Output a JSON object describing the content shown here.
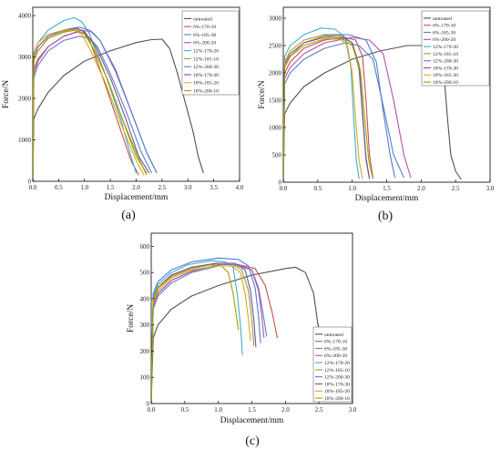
{
  "legend_entries": [
    "untreated",
    "6%-170-10",
    "6%-185-30",
    "6%-200-20",
    "12%-170-20",
    "12%-185-10",
    "12%-200-30",
    "18%-170-30",
    "18%-185-20",
    "18%-200-10"
  ],
  "series_colors": [
    "#505050",
    "#c0504d",
    "#5b7fc7",
    "#b54fb5",
    "#3bb0c9",
    "#8aa531",
    "#4f7fd0",
    "#7a4ea6",
    "#e0a41c",
    "#a0a000"
  ],
  "chart_data": [
    {
      "id": "a",
      "type": "line",
      "caption": "(a)",
      "xlabel": "Displacement/mm",
      "ylabel": "Force/N",
      "xlim": [
        0,
        4.0
      ],
      "ylim": [
        0,
        4200
      ],
      "xticks": [
        0.0,
        0.5,
        1.0,
        1.5,
        2.0,
        2.5,
        3.0,
        3.5,
        4.0
      ],
      "xtick_labels": [
        "0.0",
        "0.5",
        "1.0",
        "1.5",
        "2.0",
        "2.5",
        "3.0",
        "3.5",
        "4.0"
      ],
      "yticks": [
        0,
        1000,
        2000,
        3000,
        4000
      ],
      "ytick_labels": [
        "0",
        "1000",
        "2000",
        "3000",
        "4000"
      ],
      "legend_position": "top-right",
      "series": [
        {
          "name": "untreated",
          "x": [
            0,
            0.02,
            0.1,
            0.3,
            0.6,
            1.0,
            1.5,
            2.0,
            2.3,
            2.5,
            2.65,
            2.8,
            2.95,
            3.1,
            3.2,
            3.3
          ],
          "y": [
            0,
            1500,
            1750,
            2150,
            2550,
            2900,
            3150,
            3350,
            3420,
            3430,
            3200,
            2600,
            1900,
            1200,
            600,
            200
          ]
        },
        {
          "name": "6%-170-10",
          "x": [
            0,
            0.02,
            0.1,
            0.3,
            0.6,
            0.85,
            1.0,
            1.1,
            1.3,
            1.6,
            1.9,
            2.05
          ],
          "y": [
            0,
            2700,
            2950,
            3250,
            3500,
            3600,
            3580,
            3400,
            2700,
            1600,
            500,
            150
          ]
        },
        {
          "name": "6%-185-30",
          "x": [
            0,
            0.02,
            0.1,
            0.3,
            0.6,
            0.9,
            1.1,
            1.25,
            1.5,
            1.8,
            2.1,
            2.3
          ],
          "y": [
            0,
            2500,
            2800,
            3150,
            3400,
            3500,
            3450,
            3250,
            2600,
            1700,
            700,
            200
          ]
        },
        {
          "name": "6%-200-20",
          "x": [
            0,
            0.02,
            0.1,
            0.3,
            0.6,
            0.95,
            1.15,
            1.3,
            1.6,
            1.9,
            2.2,
            2.4
          ],
          "y": [
            0,
            2600,
            2900,
            3250,
            3500,
            3650,
            3600,
            3400,
            2700,
            1700,
            700,
            200
          ]
        },
        {
          "name": "12%-170-20",
          "x": [
            0,
            0.02,
            0.1,
            0.3,
            0.6,
            0.8,
            0.95,
            1.1,
            1.4,
            1.7,
            1.9,
            2.0
          ],
          "y": [
            0,
            3100,
            3350,
            3650,
            3880,
            3950,
            3850,
            3550,
            2600,
            1500,
            600,
            200
          ]
        },
        {
          "name": "12%-185-10",
          "x": [
            0,
            0.02,
            0.1,
            0.3,
            0.6,
            0.85,
            1.0,
            1.15,
            1.4,
            1.7,
            2.0,
            2.2
          ],
          "y": [
            0,
            2900,
            3150,
            3450,
            3620,
            3680,
            3620,
            3350,
            2600,
            1600,
            600,
            200
          ]
        },
        {
          "name": "12%-200-30",
          "x": [
            0,
            0.02,
            0.1,
            0.3,
            0.6,
            0.9,
            1.1,
            1.3,
            1.6,
            1.9,
            2.2,
            2.4
          ],
          "y": [
            0,
            3000,
            3250,
            3500,
            3650,
            3720,
            3650,
            3400,
            2650,
            1700,
            700,
            200
          ]
        },
        {
          "name": "18%-170-30",
          "x": [
            0,
            0.02,
            0.1,
            0.3,
            0.6,
            0.85,
            1.0,
            1.2,
            1.5,
            1.8,
            2.05,
            2.25
          ],
          "y": [
            0,
            3000,
            3250,
            3500,
            3650,
            3700,
            3600,
            3300,
            2500,
            1500,
            600,
            200
          ]
        },
        {
          "name": "18%-185-20",
          "x": [
            0,
            0.02,
            0.1,
            0.3,
            0.6,
            0.8,
            0.95,
            1.1,
            1.4,
            1.7,
            2.0,
            2.15
          ],
          "y": [
            0,
            3100,
            3350,
            3550,
            3650,
            3650,
            3550,
            3200,
            2400,
            1400,
            500,
            150
          ]
        },
        {
          "name": "18%-200-10",
          "x": [
            0,
            0.02,
            0.1,
            0.3,
            0.6,
            0.85,
            1.0,
            1.15,
            1.45,
            1.75,
            2.05,
            2.2
          ],
          "y": [
            0,
            2900,
            3150,
            3450,
            3600,
            3650,
            3550,
            3250,
            2450,
            1450,
            550,
            150
          ]
        }
      ]
    },
    {
      "id": "b",
      "type": "line",
      "caption": "(b)",
      "xlabel": "Displacement/mm",
      "ylabel": "Force/N",
      "xlim": [
        0,
        3.0
      ],
      "ylim": [
        0,
        3200
      ],
      "xticks": [
        0.0,
        0.5,
        1.0,
        1.5,
        2.0,
        2.5,
        3.0
      ],
      "xtick_labels": [
        "0.0",
        "0.5",
        "1.0",
        "1.5",
        "2.0",
        "2.5",
        "3.0"
      ],
      "yticks": [
        0,
        500,
        1000,
        1500,
        2000,
        2500,
        3000
      ],
      "ytick_labels": [
        "0",
        "500",
        "1000",
        "1500",
        "2000",
        "2500",
        "3000"
      ],
      "legend_position": "top-right",
      "series": [
        {
          "name": "untreated",
          "x": [
            0,
            0.02,
            0.1,
            0.3,
            0.6,
            1.0,
            1.4,
            1.8,
            2.05,
            2.25,
            2.33,
            2.38,
            2.43,
            2.5,
            2.58
          ],
          "y": [
            0,
            1250,
            1450,
            1750,
            2000,
            2250,
            2400,
            2500,
            2500,
            2450,
            2000,
            1200,
            500,
            200,
            50
          ]
        },
        {
          "name": "6%-170-10",
          "x": [
            0,
            0.02,
            0.1,
            0.3,
            0.6,
            0.9,
            1.05,
            1.15,
            1.2,
            1.25,
            1.3
          ],
          "y": [
            0,
            2000,
            2200,
            2450,
            2600,
            2650,
            2600,
            2300,
            1500,
            500,
            80
          ]
        },
        {
          "name": "6%-185-30",
          "x": [
            0,
            0.02,
            0.1,
            0.3,
            0.6,
            0.9,
            1.1,
            1.3,
            1.45,
            1.6,
            1.75
          ],
          "y": [
            0,
            1800,
            2000,
            2250,
            2450,
            2550,
            2500,
            2250,
            1400,
            500,
            80
          ]
        },
        {
          "name": "6%-200-20",
          "x": [
            0,
            0.02,
            0.1,
            0.3,
            0.6,
            1.0,
            1.25,
            1.45,
            1.6,
            1.75,
            1.85
          ],
          "y": [
            0,
            1900,
            2100,
            2350,
            2550,
            2650,
            2600,
            2350,
            1500,
            500,
            80
          ]
        },
        {
          "name": "12%-170-20",
          "x": [
            0,
            0.02,
            0.1,
            0.3,
            0.55,
            0.75,
            0.9,
            0.98,
            1.02,
            1.06,
            1.1
          ],
          "y": [
            0,
            2300,
            2500,
            2700,
            2820,
            2800,
            2650,
            2100,
            1200,
            400,
            60
          ]
        },
        {
          "name": "12%-185-10",
          "x": [
            0,
            0.02,
            0.1,
            0.3,
            0.6,
            0.85,
            1.0,
            1.1,
            1.15,
            1.2,
            1.25
          ],
          "y": [
            0,
            2100,
            2300,
            2550,
            2680,
            2680,
            2550,
            2050,
            1200,
            400,
            60
          ]
        },
        {
          "name": "12%-200-30",
          "x": [
            0,
            0.02,
            0.1,
            0.3,
            0.6,
            0.95,
            1.2,
            1.35,
            1.45,
            1.55,
            1.62
          ],
          "y": [
            0,
            2200,
            2400,
            2600,
            2700,
            2700,
            2600,
            2200,
            1300,
            500,
            80
          ]
        },
        {
          "name": "18%-170-30",
          "x": [
            0,
            0.02,
            0.1,
            0.3,
            0.6,
            0.85,
            1.0,
            1.1,
            1.15,
            1.2,
            1.25
          ],
          "y": [
            0,
            2150,
            2350,
            2550,
            2650,
            2650,
            2550,
            2150,
            1300,
            450,
            60
          ]
        },
        {
          "name": "18%-185-20",
          "x": [
            0,
            0.02,
            0.1,
            0.3,
            0.55,
            0.8,
            0.93,
            1.0,
            1.05,
            1.1,
            1.15
          ],
          "y": [
            0,
            2200,
            2400,
            2600,
            2680,
            2650,
            2500,
            2000,
            1150,
            400,
            60
          ]
        },
        {
          "name": "18%-200-10",
          "x": [
            0,
            0.02,
            0.1,
            0.3,
            0.6,
            0.85,
            1.0,
            1.12,
            1.18,
            1.24,
            1.3
          ],
          "y": [
            0,
            2100,
            2300,
            2500,
            2620,
            2620,
            2500,
            2050,
            1200,
            400,
            60
          ]
        }
      ]
    },
    {
      "id": "c",
      "type": "line",
      "caption": "(c)",
      "xlabel": "Displacement/mm",
      "ylabel": "Force/N",
      "xlim": [
        0,
        3.0
      ],
      "ylim": [
        0,
        650
      ],
      "xticks": [
        0.0,
        0.5,
        1.0,
        1.5,
        2.0,
        2.5,
        3.0
      ],
      "xtick_labels": [
        "0.0",
        "0.5",
        "1.0",
        "1.5",
        "2.0",
        "2.5",
        "3.0"
      ],
      "yticks": [
        0,
        100,
        200,
        300,
        400,
        500,
        600
      ],
      "ytick_labels": [
        "0",
        "100",
        "200",
        "300",
        "400",
        "500",
        "600"
      ],
      "legend_position": "bottom-right",
      "series": [
        {
          "name": "untreated",
          "x": [
            0,
            0.03,
            0.1,
            0.3,
            0.6,
            1.0,
            1.5,
            2.0,
            2.15,
            2.3,
            2.42,
            2.48,
            2.5
          ],
          "y": [
            0,
            250,
            300,
            360,
            410,
            450,
            490,
            515,
            520,
            500,
            420,
            310,
            280
          ]
        },
        {
          "name": "6%-170-10",
          "x": [
            0,
            0.03,
            0.1,
            0.3,
            0.6,
            1.0,
            1.3,
            1.55,
            1.7,
            1.8,
            1.88
          ],
          "y": [
            0,
            380,
            420,
            470,
            505,
            530,
            530,
            515,
            450,
            350,
            250
          ]
        },
        {
          "name": "6%-185-30",
          "x": [
            0,
            0.03,
            0.1,
            0.3,
            0.6,
            1.0,
            1.3,
            1.5,
            1.6,
            1.67,
            1.72
          ],
          "y": [
            0,
            360,
            410,
            460,
            500,
            525,
            525,
            510,
            440,
            340,
            255
          ]
        },
        {
          "name": "6%-200-20",
          "x": [
            0,
            0.03,
            0.1,
            0.3,
            0.6,
            1.0,
            1.3,
            1.5,
            1.6,
            1.65,
            1.68
          ],
          "y": [
            0,
            370,
            420,
            470,
            505,
            530,
            530,
            510,
            430,
            330,
            250
          ]
        },
        {
          "name": "12%-170-20",
          "x": [
            0,
            0.03,
            0.1,
            0.3,
            0.55,
            0.9,
            1.1,
            1.22,
            1.28,
            1.33,
            1.36
          ],
          "y": [
            0,
            410,
            455,
            500,
            530,
            545,
            540,
            520,
            420,
            300,
            185
          ]
        },
        {
          "name": "12%-185-10",
          "x": [
            0,
            0.03,
            0.1,
            0.3,
            0.6,
            0.95,
            1.2,
            1.35,
            1.45,
            1.5,
            1.53
          ],
          "y": [
            0,
            400,
            445,
            490,
            520,
            535,
            535,
            510,
            430,
            320,
            220
          ]
        },
        {
          "name": "12%-200-30",
          "x": [
            0,
            0.03,
            0.1,
            0.3,
            0.6,
            1.0,
            1.3,
            1.45,
            1.55,
            1.6,
            1.63
          ],
          "y": [
            0,
            420,
            465,
            510,
            540,
            555,
            550,
            525,
            440,
            330,
            230
          ]
        },
        {
          "name": "18%-170-30",
          "x": [
            0,
            0.03,
            0.1,
            0.3,
            0.6,
            1.0,
            1.25,
            1.4,
            1.48,
            1.53,
            1.56
          ],
          "y": [
            0,
            390,
            440,
            490,
            520,
            535,
            535,
            510,
            430,
            320,
            215
          ]
        },
        {
          "name": "18%-185-20",
          "x": [
            0,
            0.03,
            0.1,
            0.3,
            0.6,
            0.95,
            1.2,
            1.33,
            1.4,
            1.45,
            1.48
          ],
          "y": [
            0,
            380,
            430,
            480,
            510,
            525,
            525,
            500,
            420,
            320,
            240
          ]
        },
        {
          "name": "18%-200-10",
          "x": [
            0,
            0.03,
            0.1,
            0.3,
            0.6,
            0.9,
            1.05,
            1.15,
            1.22,
            1.27,
            1.3
          ],
          "y": [
            0,
            395,
            440,
            485,
            515,
            530,
            525,
            500,
            420,
            330,
            280
          ]
        }
      ]
    }
  ]
}
